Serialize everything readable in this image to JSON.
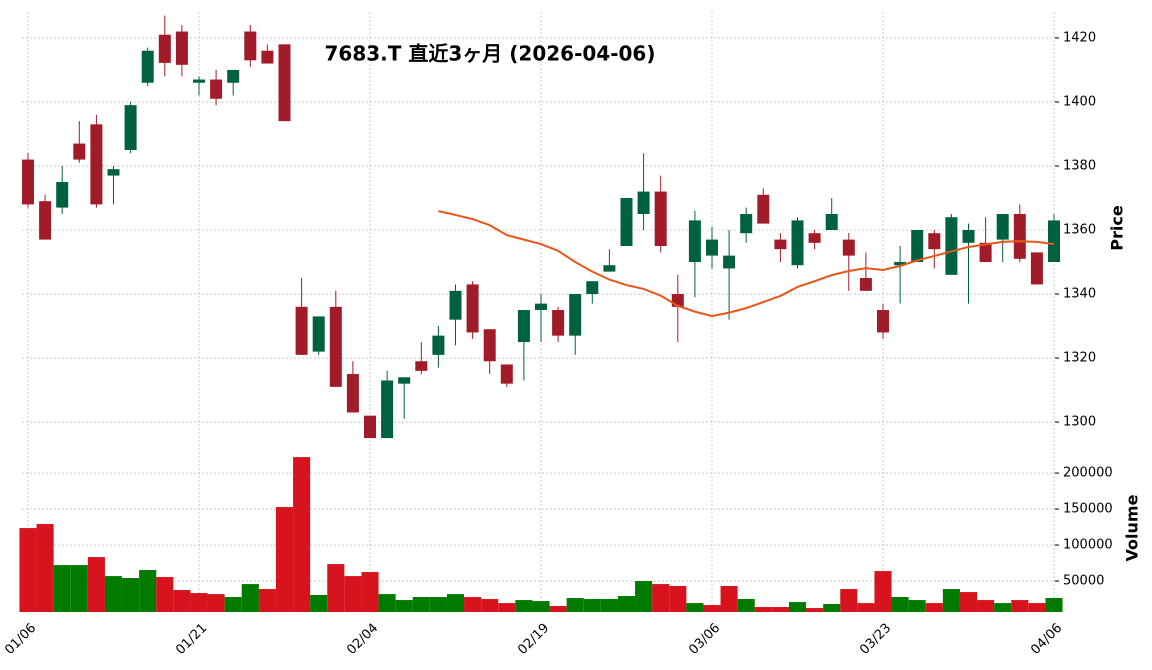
{
  "chart_data": [
    {
      "type": "candlestick",
      "title": "7683.T  直近3ヶ月  (2026-04-06)",
      "y_label": "Price",
      "categories": [
        "01/06",
        null,
        null,
        null,
        null,
        null,
        null,
        null,
        null,
        null,
        "01/21",
        null,
        null,
        null,
        null,
        null,
        null,
        null,
        null,
        null,
        "02/04",
        null,
        null,
        null,
        null,
        null,
        null,
        null,
        null,
        null,
        "02/19",
        null,
        null,
        null,
        null,
        null,
        null,
        null,
        null,
        null,
        "03/06",
        null,
        null,
        null,
        null,
        null,
        null,
        null,
        null,
        null,
        "03/23",
        null,
        null,
        null,
        null,
        null,
        null,
        null,
        null,
        null,
        "04/06"
      ],
      "open": [
        1382,
        1369,
        1367,
        1387,
        1393,
        1377,
        1385,
        1406,
        1421,
        1422,
        1406,
        1407,
        1406,
        1422,
        1416,
        1418,
        1336,
        1322,
        1336,
        1315,
        1302,
        1295,
        1312,
        1319,
        1321,
        1332,
        1343,
        1329,
        1318,
        1325,
        1335,
        1335,
        1327,
        1340,
        1347,
        1355,
        1365,
        1372,
        1340,
        1350,
        1352,
        1348,
        1359,
        1371,
        1357,
        1349,
        1359,
        1360,
        1357,
        1345,
        1335,
        1349,
        1350,
        1359,
        1346,
        1356,
        1356,
        1357,
        1365,
        1353,
        1350
      ],
      "high": [
        1384,
        1371,
        1380,
        1394,
        1396,
        1380,
        1400,
        1417,
        1427,
        1424,
        1408,
        1410,
        1410,
        1424,
        1418,
        1418,
        1345,
        1333,
        1341,
        1319,
        1302,
        1316,
        1314,
        1325,
        1330,
        1343,
        1344,
        1329,
        1318,
        1335,
        1340,
        1336,
        1340,
        1344,
        1354,
        1370,
        1384,
        1377,
        1346,
        1366,
        1361,
        1360,
        1367,
        1373,
        1359,
        1364,
        1360,
        1370,
        1359,
        1353,
        1337,
        1355,
        1360,
        1360,
        1365,
        1362,
        1364,
        1365,
        1368,
        1353,
        1365
      ],
      "low": [
        1367,
        1357,
        1365,
        1381,
        1367,
        1368,
        1384,
        1405,
        1408,
        1408,
        1402,
        1399,
        1402,
        1411,
        1412,
        1394,
        1321,
        1321,
        1311,
        1303,
        1295,
        1295,
        1301,
        1315,
        1317,
        1324,
        1326,
        1315,
        1311,
        1313,
        1325,
        1325,
        1321,
        1337,
        1347,
        1355,
        1360,
        1353,
        1325,
        1339,
        1348,
        1332,
        1356,
        1362,
        1350,
        1348,
        1354,
        1360,
        1341,
        1341,
        1326,
        1337,
        1350,
        1348,
        1346,
        1337,
        1350,
        1350,
        1350,
        1343,
        1350
      ],
      "close": [
        1368,
        1357,
        1375,
        1382,
        1368,
        1379,
        1399,
        1416,
        1412.2,
        1411.6,
        1407,
        1401,
        1410,
        1413,
        1412,
        1394,
        1321,
        1333,
        1311,
        1303,
        1295,
        1313,
        1314,
        1316,
        1327,
        1341,
        1328,
        1319,
        1312,
        1335,
        1337,
        1327,
        1340,
        1344,
        1349,
        1370,
        1372,
        1355,
        1336,
        1363,
        1357,
        1352,
        1365,
        1362,
        1354,
        1363,
        1356,
        1365,
        1352,
        1341,
        1328,
        1350,
        1360,
        1354,
        1364,
        1360,
        1350,
        1365,
        1351,
        1343,
        1363
      ],
      "up_color": "#00613e",
      "down_color": "#a11c28",
      "lines": [
        {
          "color": "#e8561a",
          "values": [
            null,
            null,
            null,
            null,
            null,
            null,
            null,
            null,
            null,
            null,
            null,
            null,
            null,
            null,
            null,
            null,
            null,
            null,
            null,
            null,
            null,
            null,
            null,
            null,
            1365.9,
            1364.7,
            1363.4,
            1361.5,
            1358.4,
            1357,
            1355.6,
            1353.5,
            1350,
            1347,
            1344.5,
            1342.8,
            1341.6,
            1339.5,
            1336.3,
            1334.5,
            1333.1,
            1334.2,
            1335.6,
            1337.5,
            1339.4,
            1342.2,
            1344,
            1345.9,
            1347.2,
            1348.1,
            1347.5,
            1348.8,
            1350.5,
            1351.9,
            1353.3,
            1354.7,
            1355.5,
            1356.3,
            1356.5,
            1356.3,
            1355.6
          ]
        }
      ],
      "ylim": [
        1294.4,
        1428.1
      ],
      "yticks": [
        1300,
        1320,
        1340,
        1360,
        1380,
        1400,
        1420
      ],
      "grid": true
    },
    {
      "type": "bar",
      "y_label": "Volume",
      "values": [
        123600,
        129200,
        72200,
        72200,
        83300,
        56900,
        54200,
        65300,
        55600,
        37500,
        33300,
        31900,
        27800,
        45800,
        38900,
        152800,
        222200,
        30600,
        73600,
        56900,
        62500,
        31900,
        23600,
        27800,
        27800,
        31900,
        27800,
        25000,
        19400,
        23600,
        22200,
        15300,
        26400,
        25000,
        25000,
        29200,
        50000,
        45800,
        43100,
        19400,
        16700,
        43100,
        25000,
        13900,
        13900,
        20800,
        12500,
        18100,
        38900,
        19400,
        63900,
        27800,
        23600,
        19400,
        38900,
        34700,
        23600,
        19400,
        23600,
        19400,
        26400
      ],
      "up_color": "#007b00",
      "down_color": "#d7141e",
      "ylim": [
        7000,
        239000
      ],
      "yticks": [
        50000,
        100000,
        150000,
        200000
      ],
      "grid": true
    }
  ]
}
